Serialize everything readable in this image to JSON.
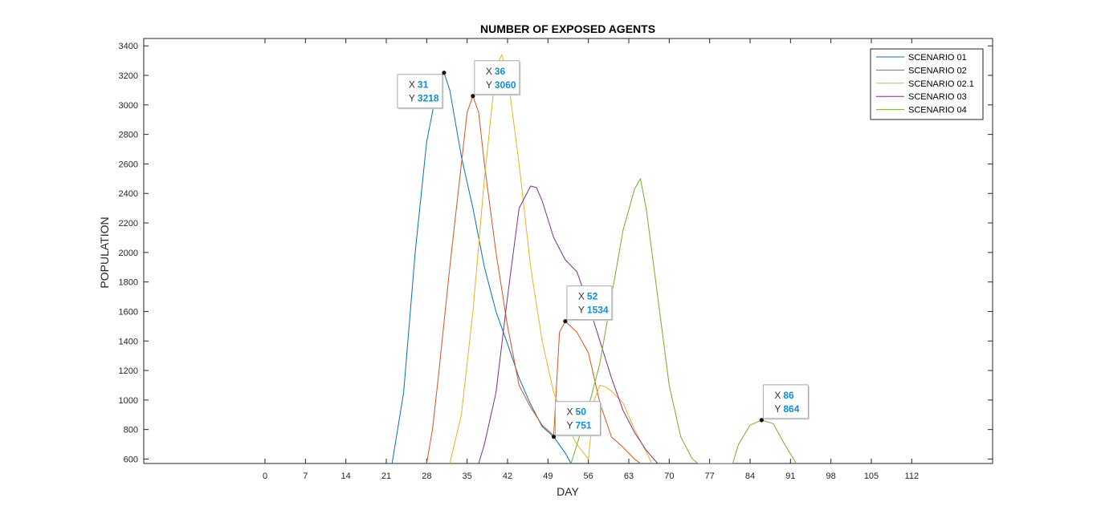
{
  "colors": {
    "axis": "#262626",
    "tip_value": "#0b8fe0",
    "series": [
      "#0072BD",
      "#D95319",
      "#EDB120",
      "#7E2F8E",
      "#77AC30"
    ]
  },
  "chart_data": {
    "type": "line",
    "title": "NUMBER OF EXPOSED AGENTS",
    "xlabel": "DAY",
    "ylabel": "POPULATION",
    "xlim": [
      -21,
      126
    ],
    "ylim": [
      570,
      3450
    ],
    "x_ticks": [
      0,
      7,
      14,
      21,
      28,
      35,
      42,
      49,
      56,
      63,
      70,
      77,
      84,
      91,
      98,
      105,
      112
    ],
    "y_ticks": [
      600,
      800,
      1000,
      1200,
      1400,
      1600,
      1800,
      2000,
      2200,
      2400,
      2600,
      2800,
      3000,
      3200,
      3400
    ],
    "grid": false,
    "legend_position": "top-right",
    "series": [
      {
        "name": "SCENARIO 01",
        "x": [
          22,
          24,
          26,
          28,
          30,
          31,
          32,
          34,
          36,
          38,
          40,
          42,
          44,
          46,
          48,
          50,
          52,
          53
        ],
        "y": [
          570,
          1050,
          2000,
          2750,
          3150,
          3218,
          3100,
          2650,
          2300,
          1900,
          1600,
          1380,
          1150,
          970,
          820,
          751,
          640,
          570
        ]
      },
      {
        "name": "SCENARIO 02",
        "x": [
          28,
          29,
          30,
          32,
          34,
          35,
          36,
          37,
          38,
          40,
          42,
          44,
          46,
          48,
          50,
          51,
          52,
          54,
          56,
          58,
          60,
          62,
          64,
          65
        ],
        "y": [
          570,
          800,
          1150,
          1900,
          2600,
          2950,
          3060,
          2950,
          2600,
          2000,
          1500,
          1100,
          950,
          830,
          760,
          1460,
          1534,
          1460,
          1320,
          980,
          750,
          680,
          600,
          570
        ]
      },
      {
        "name": "SCENARIO 02.1",
        "x": [
          32,
          34,
          36,
          38,
          40,
          41,
          42,
          44,
          46,
          48,
          50,
          52,
          54,
          56,
          57,
          58,
          59,
          60,
          62,
          64,
          66,
          67
        ],
        "y": [
          570,
          900,
          1600,
          2500,
          3250,
          3340,
          3200,
          2600,
          1900,
          1400,
          1050,
          850,
          700,
          600,
          1000,
          1100,
          1090,
          1060,
          980,
          800,
          650,
          570
        ]
      },
      {
        "name": "SCENARIO 03",
        "x": [
          37,
          38,
          40,
          42,
          44,
          46,
          47,
          48,
          50,
          52,
          54,
          56,
          58,
          60,
          62,
          64,
          66,
          68
        ],
        "y": [
          570,
          700,
          1050,
          1700,
          2300,
          2450,
          2440,
          2350,
          2100,
          1950,
          1870,
          1650,
          1400,
          1150,
          930,
          780,
          660,
          570
        ]
      },
      {
        "name": "SCENARIO 04",
        "x": [
          53,
          56,
          58,
          60,
          62,
          64,
          65,
          66,
          68,
          70,
          72,
          74,
          75,
          81,
          82,
          84,
          86,
          88,
          90,
          92
        ],
        "y": [
          570,
          950,
          1250,
          1700,
          2150,
          2430,
          2500,
          2300,
          1700,
          1100,
          750,
          600,
          570,
          570,
          700,
          830,
          864,
          840,
          700,
          570
        ]
      }
    ],
    "annotations": [
      {
        "series": 0,
        "x": 31,
        "y": 3218,
        "x_key": "X",
        "y_key": "Y",
        "x_text": "31",
        "y_text": "3218",
        "side": "left"
      },
      {
        "series": 1,
        "x": 36,
        "y": 3060,
        "x_key": "X",
        "y_key": "Y",
        "x_text": "36",
        "y_text": "3060",
        "side": "right"
      },
      {
        "series": 1,
        "x": 52,
        "y": 1534,
        "x_key": "X",
        "y_key": "Y",
        "x_text": "52",
        "y_text": "1534",
        "side": "right"
      },
      {
        "series": 0,
        "x": 50,
        "y": 751,
        "x_key": "X",
        "y_key": "Y",
        "x_text": "50",
        "y_text": "751",
        "side": "right"
      },
      {
        "series": 4,
        "x": 86,
        "y": 864,
        "x_key": "X",
        "y_key": "Y",
        "x_text": "86",
        "y_text": "864",
        "side": "right"
      }
    ]
  }
}
